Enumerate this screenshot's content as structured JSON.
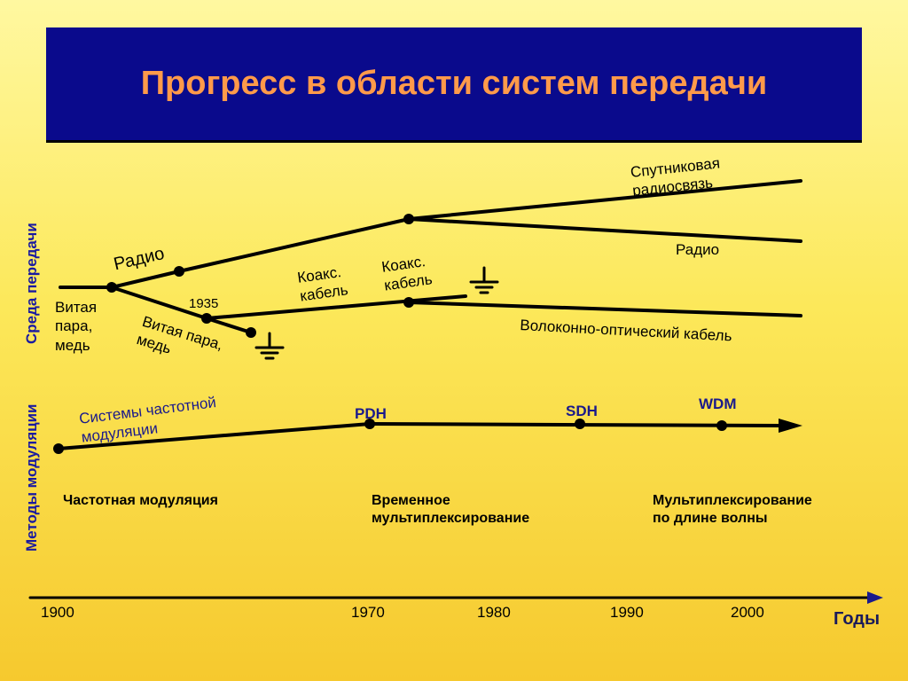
{
  "title": "Прогресс в области систем передачи",
  "axis_labels": {
    "media": "Среда передачи",
    "modulation": "Методы модуляции",
    "years": "Годы"
  },
  "media_labels": {
    "radio_branch": "Радио",
    "satellite_l1": "Спутниковая",
    "satellite_l2": "радиосвязь",
    "radio": "Радио",
    "twisted_pair_l1": "Витая",
    "twisted_pair_l2": "пара,",
    "twisted_pair_l3": "медь",
    "twisted_pair2_l1": "Витая пара,",
    "twisted_pair2_l2": "медь",
    "year_1935": "1935",
    "coax1_l1": "Коакс.",
    "coax1_l2": "кабель",
    "coax2_l1": "Коакс.",
    "coax2_l2": "кабель",
    "fiber": "Волоконно-оптический кабель"
  },
  "modulation_labels": {
    "fm_systems_l1": "Системы частотной",
    "fm_systems_l2": "модуляции",
    "pdh": "PDH",
    "sdh": "SDH",
    "wdm": "WDM"
  },
  "eras": {
    "fm": "Частотная модуляция",
    "tdm_l1": "Временное",
    "tdm_l2": "мультиплексирование",
    "wdm_l1": "Мультиплексирование",
    "wdm_l2": "по длине волны"
  },
  "timeline": [
    "1900",
    "1970",
    "1980",
    "1990",
    "2000"
  ],
  "colors": {
    "title_bg": "#0a0a8c",
    "title_text": "#ff9a4a",
    "axis_label": "#1a1aa0",
    "arrow": "#1a1a8c"
  },
  "icons": [
    "ground-icon",
    "arrow-right-icon"
  ]
}
